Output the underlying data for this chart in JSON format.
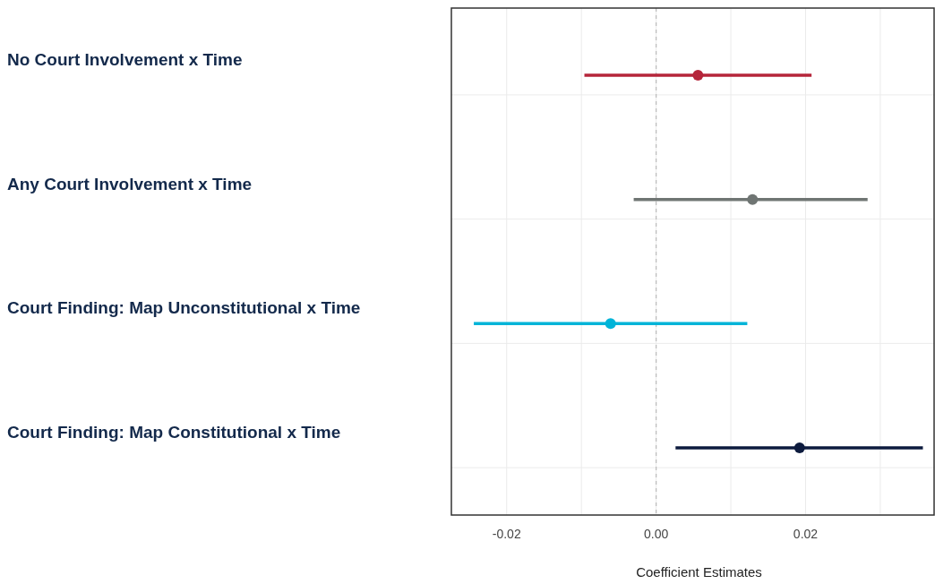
{
  "chart_data": {
    "type": "scatter",
    "orientation": "horizontal",
    "xlabel": "Coefficient Estimates",
    "categories": [
      "No Court Involvement x Time",
      "Any Court Involvement x Time",
      "Court Finding: Map Unconstitutional x Time",
      "Court Finding: Map Constitutional x Time"
    ],
    "values": [
      0.0056,
      0.0129,
      -0.0061,
      0.0192
    ],
    "colors": [
      "#b5253a",
      "#6f7573",
      "#00b4d8",
      "#0d1b3e"
    ],
    "errors": [
      [
        -0.0096,
        0.0208
      ],
      [
        -0.003,
        0.0283
      ],
      [
        -0.0244,
        0.0122
      ],
      [
        0.0026,
        0.0357
      ]
    ],
    "xlim": [
      -0.0274,
      0.0372
    ],
    "xticks": [
      -0.02,
      {
        "value": -0.01,
        "label": null
      },
      {
        "value": 0,
        "label": "0.00"
      },
      {
        "value": 0.01,
        "label": null
      },
      0.02,
      {
        "value": 0.03,
        "label": null
      }
    ],
    "ref_lines": [
      {
        "axis": "x",
        "value": 0,
        "color": "#bbbbbb",
        "line_style": "dashed"
      }
    ],
    "grid": true,
    "marker": "circle"
  }
}
